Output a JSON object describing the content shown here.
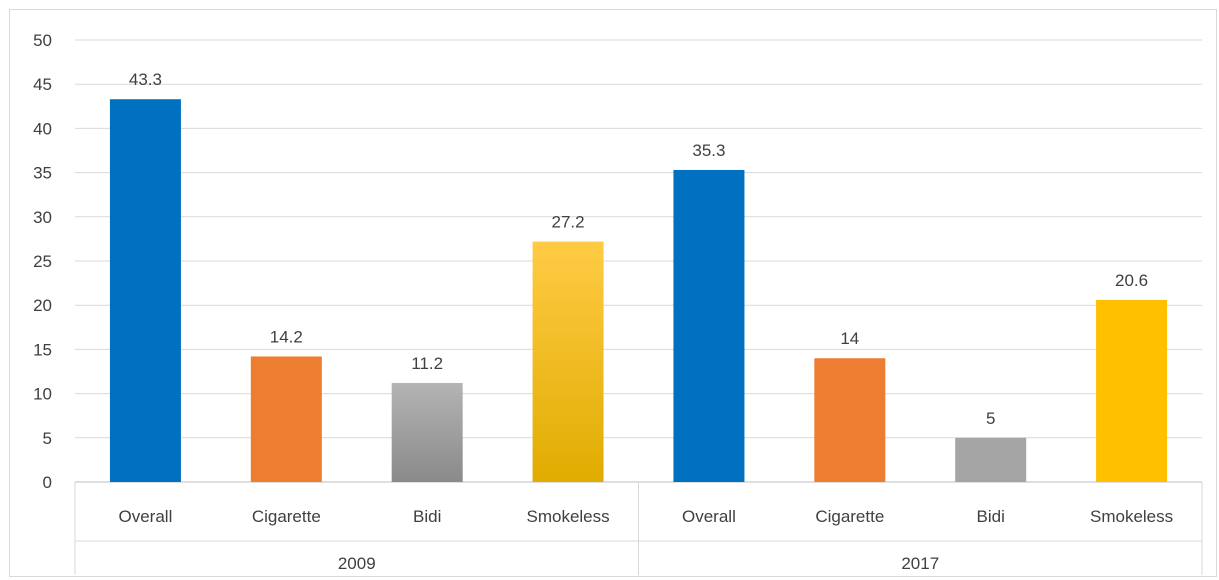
{
  "chart_data": {
    "type": "bar",
    "title": "",
    "xlabel": "",
    "ylabel": "",
    "ylim": [
      0,
      50
    ],
    "yticks": [
      0,
      5,
      10,
      15,
      20,
      25,
      30,
      35,
      40,
      45,
      50
    ],
    "grid": true,
    "legend": "none",
    "groups": [
      {
        "label": "2009",
        "categories": [
          "Overall",
          "Cigarette",
          "Bidi",
          "Smokeless"
        ],
        "values": [
          43.3,
          14.2,
          11.2,
          27.2
        ],
        "data_labels": [
          "43.3",
          "14.2",
          "11.2",
          "27.2"
        ]
      },
      {
        "label": "2017",
        "categories": [
          "Overall",
          "Cigarette",
          "Bidi",
          "Smokeless"
        ],
        "values": [
          35.3,
          14,
          5,
          20.6
        ],
        "data_labels": [
          "35.3",
          "14",
          "5",
          "20.6"
        ]
      }
    ],
    "category_colors": {
      "Overall": "#0070C0",
      "Cigarette": "#ED7D31",
      "Bidi": "#A5A5A5",
      "Smokeless": "#FFC000"
    },
    "gradient_colors": {
      "Bidi": [
        "#B4B4B4",
        "#8A8A8A"
      ],
      "Smokeless": [
        "#FFCB45",
        "#E0AC00"
      ]
    },
    "gradient_group": "2009"
  }
}
